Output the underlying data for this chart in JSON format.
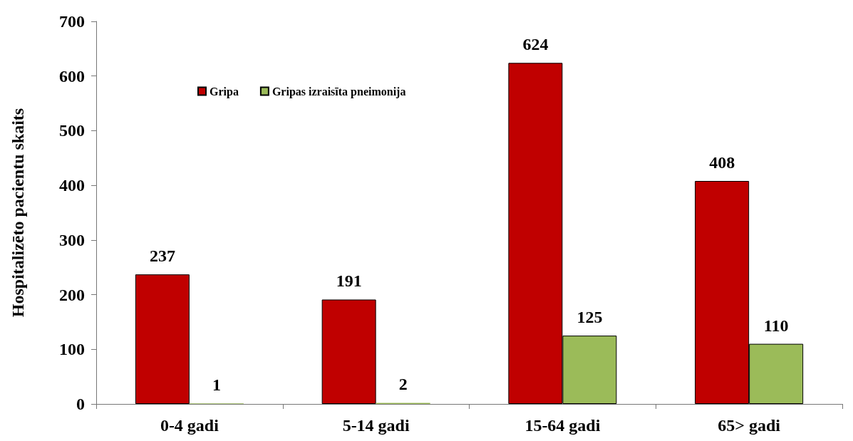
{
  "chart_data": {
    "type": "bar",
    "ylabel": "Hospitalizēto pacientu skaits",
    "categories": [
      "0-4 gadi",
      "5-14 gadi",
      "15-64 gadi",
      "65> gadi"
    ],
    "series": [
      {
        "name": "Gripa",
        "color": "#c00000",
        "values": [
          237,
          191,
          624,
          408
        ]
      },
      {
        "name": "Gripas izraisīta pneimonija",
        "color": "#9bbb59",
        "values": [
          1,
          2,
          125,
          110
        ]
      }
    ],
    "ylim": [
      0,
      700
    ],
    "yticks": [
      0,
      100,
      200,
      300,
      400,
      500,
      600,
      700
    ],
    "grid": false,
    "legend": "top left",
    "data_labels": true
  }
}
